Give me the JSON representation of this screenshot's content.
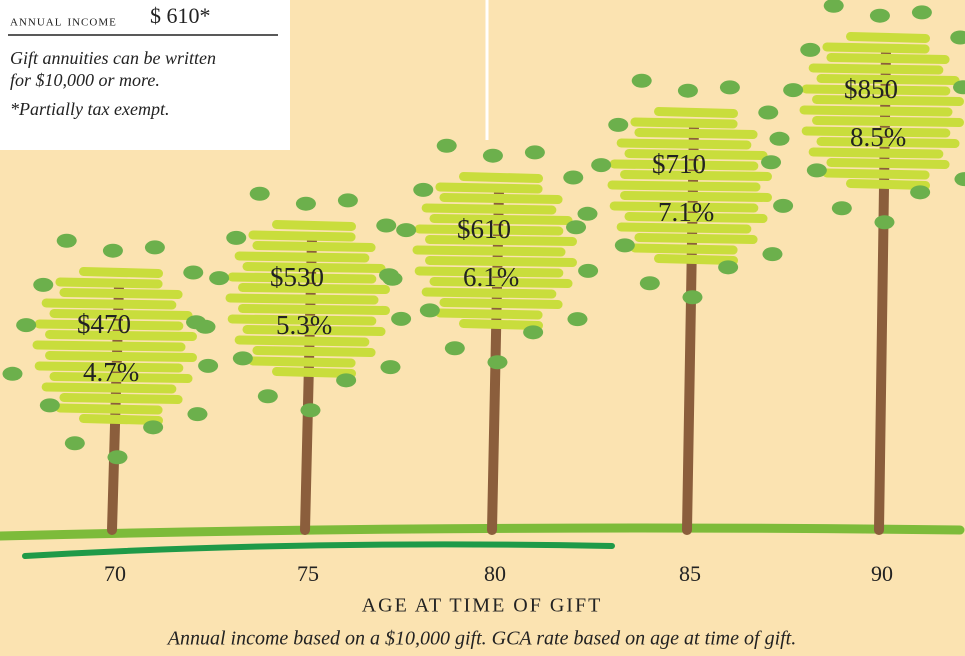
{
  "header": {
    "label": "annual income",
    "amount": "$ 610*"
  },
  "notes": [
    "Gift annuities can be written",
    "for $10,000 or more.",
    "*Partially tax exempt."
  ],
  "trees": [
    {
      "age": "70",
      "income": "$470",
      "rate": "4.7%"
    },
    {
      "age": "75",
      "income": "$530",
      "rate": "5.3%"
    },
    {
      "age": "80",
      "income": "$610",
      "rate": "6.1%"
    },
    {
      "age": "85",
      "income": "$710",
      "rate": "7.1%"
    },
    {
      "age": "90",
      "income": "$850",
      "rate": "8.5%"
    }
  ],
  "axis_title": "AGE AT TIME OF GIFT",
  "footnote": "Annual income based on a $10,000 gift. GCA rate based on age at time of gift."
}
